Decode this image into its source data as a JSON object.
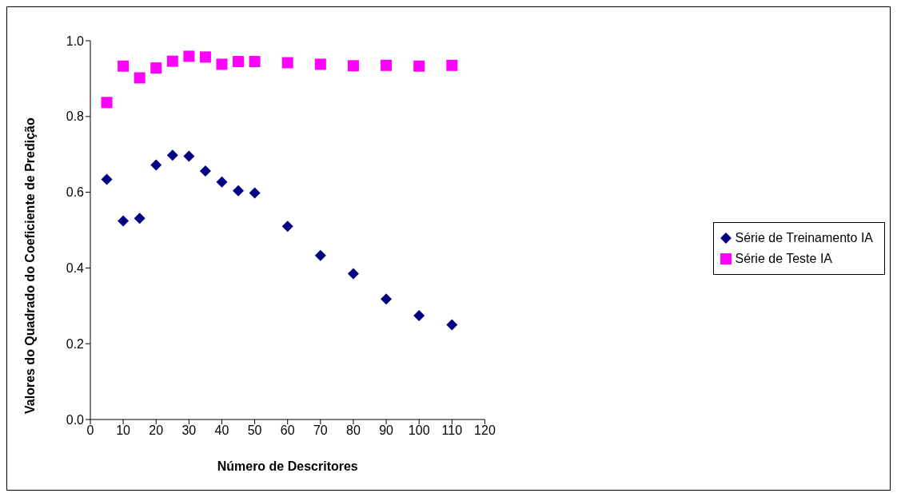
{
  "chart_data": {
    "type": "scatter",
    "xlabel": "Número de Descritores",
    "ylabel": "Valores do Quadrado do Coeficiente de Predição",
    "xlim": [
      0,
      120
    ],
    "xticks": [
      0,
      10,
      20,
      30,
      40,
      50,
      60,
      70,
      80,
      90,
      100,
      110,
      120
    ],
    "ylim": [
      0,
      1
    ],
    "yticks": [
      {
        "value": 0,
        "label": "0.0"
      },
      {
        "value": 0.2,
        "label": "0.2"
      },
      {
        "value": 0.4,
        "label": "0.4"
      },
      {
        "value": 0.6,
        "label": "0.6"
      },
      {
        "value": 0.8,
        "label": "0.8"
      },
      {
        "value": 1,
        "label": "1.0"
      }
    ],
    "x": [
      5,
      10,
      15,
      20,
      25,
      30,
      35,
      40,
      45,
      50,
      60,
      70,
      80,
      90,
      100,
      110
    ],
    "grid": false,
    "legend": "right",
    "series": [
      {
        "name": "Série de Treinamento IA",
        "color": "#000080",
        "marker": "diamond",
        "values": [
          0.634,
          0.524,
          0.531,
          0.672,
          0.698,
          0.695,
          0.656,
          0.627,
          0.604,
          0.598,
          0.51,
          0.433,
          0.385,
          0.318,
          0.274,
          0.25
        ]
      },
      {
        "name": "Série de Teste IA",
        "color": "#ff00ff",
        "marker": "square",
        "values": [
          0.837,
          0.933,
          0.902,
          0.928,
          0.946,
          0.959,
          0.957,
          0.938,
          0.945,
          0.945,
          0.942,
          0.938,
          0.934,
          0.935,
          0.933,
          0.935
        ]
      }
    ]
  }
}
